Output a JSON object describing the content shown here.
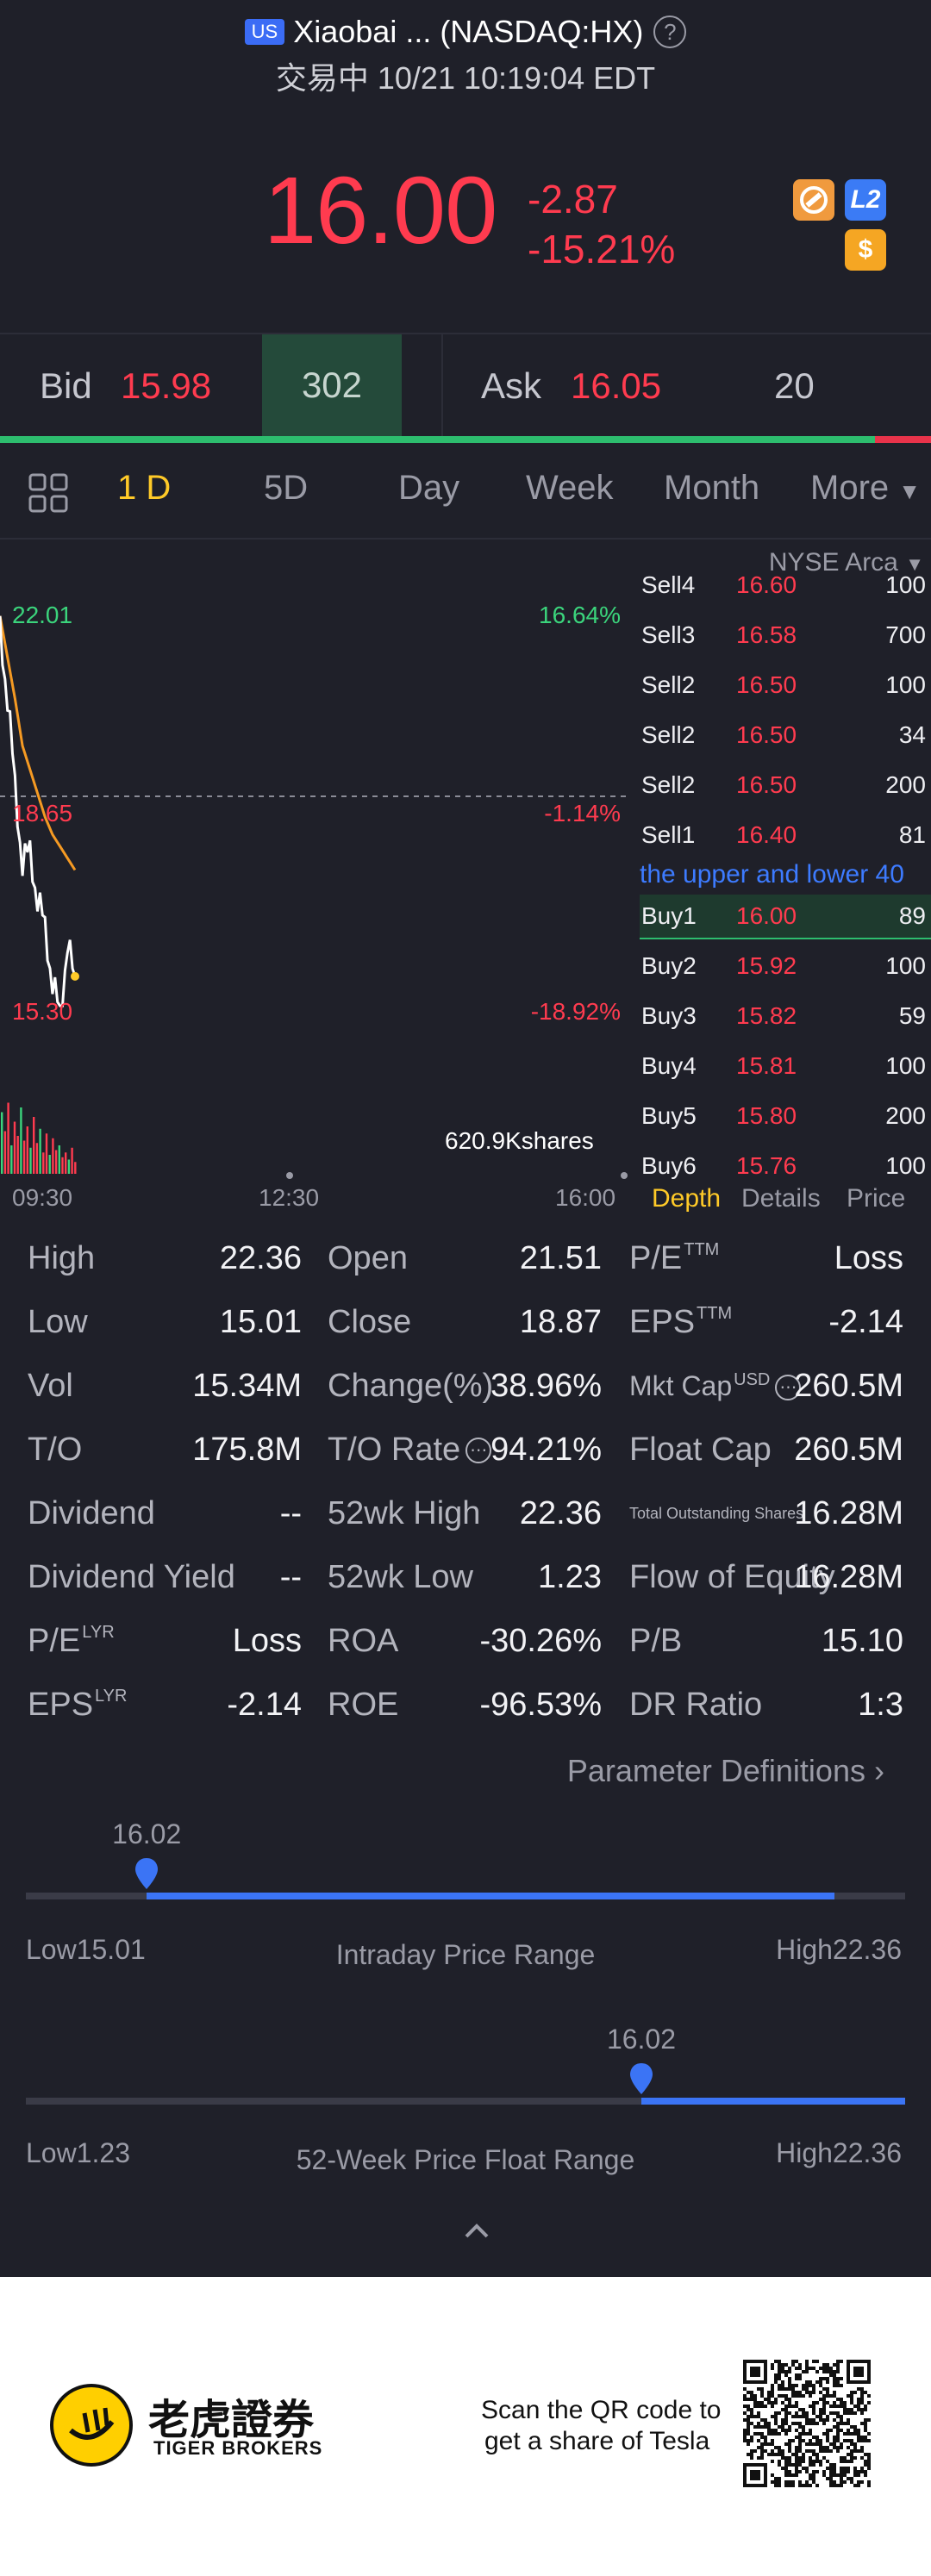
{
  "header": {
    "market_badge": "US",
    "title": "Xiaobai ... (NASDAQ:HX)",
    "status": "交易中 10/21 10:19:04 EDT"
  },
  "quote": {
    "price": "16.00",
    "change": "-2.87",
    "change_pct": "-15.21%",
    "icons": [
      "no-ad-icon",
      "level2-icon",
      "dollar-icon"
    ],
    "l2_label": "L2",
    "dollar_label": "$"
  },
  "bidask": {
    "bid_label": "Bid",
    "bid_price": "15.98",
    "bid_size": "302",
    "ask_label": "Ask",
    "ask_price": "16.05",
    "ask_size": "20",
    "bid_fraction": 0.94
  },
  "tabs": [
    {
      "label": "1 D",
      "active": true
    },
    {
      "label": "5D"
    },
    {
      "label": "Day"
    },
    {
      "label": "Week"
    },
    {
      "label": "Month"
    },
    {
      "label": "More"
    }
  ],
  "chart": {
    "high_label": "22.01",
    "high_pct": "16.64%",
    "mid_label": "18.65",
    "mid_pct": "-1.14%",
    "low_label": "15.30",
    "low_pct": "-18.92%",
    "volume_label": "620.9Kshares",
    "x_ticks": [
      "09:30",
      "12:30",
      "16:00"
    ],
    "colors": {
      "price": "#ffffff",
      "avg": "#f59a23",
      "up": "#3bd47c",
      "down": "#ff3b4f"
    }
  },
  "chart_data": {
    "type": "line",
    "title": "",
    "x": [
      "09:30",
      "09:35",
      "09:40",
      "09:45",
      "09:50",
      "09:55",
      "10:00",
      "10:05",
      "10:10",
      "10:15",
      "10:19"
    ],
    "series": [
      {
        "values": [
          22.0,
          20.4,
          19.3,
          17.6,
          18.2,
          17.0,
          16.9,
          15.6,
          15.4,
          16.3,
          15.9
        ]
      },
      {
        "values": [
          22.0,
          21.3,
          20.6,
          19.8,
          19.4,
          19.0,
          18.6,
          18.3,
          18.1,
          17.9,
          17.7
        ]
      }
    ],
    "ylim": [
      15.3,
      22.01
    ],
    "xlabel": "",
    "ylabel": ""
  },
  "orderbook": {
    "venue": "NYSE Arca",
    "notice": "the upper and lower 40",
    "sells": [
      {
        "side": "Sell4",
        "price": "16.60",
        "size": "100"
      },
      {
        "side": "Sell3",
        "price": "16.58",
        "size": "700"
      },
      {
        "side": "Sell2",
        "price": "16.50",
        "size": "100"
      },
      {
        "side": "Sell2",
        "price": "16.50",
        "size": "34"
      },
      {
        "side": "Sell2",
        "price": "16.50",
        "size": "200"
      },
      {
        "side": "Sell1",
        "price": "16.40",
        "size": "81"
      }
    ],
    "buys": [
      {
        "side": "Buy1",
        "price": "16.00",
        "size": "89"
      },
      {
        "side": "Buy2",
        "price": "15.92",
        "size": "100"
      },
      {
        "side": "Buy3",
        "price": "15.82",
        "size": "59"
      },
      {
        "side": "Buy4",
        "price": "15.81",
        "size": "100"
      },
      {
        "side": "Buy5",
        "price": "15.80",
        "size": "200"
      },
      {
        "side": "Buy6",
        "price": "15.76",
        "size": "100"
      }
    ],
    "tabs": [
      "Depth",
      "Details",
      "Price"
    ]
  },
  "stats": {
    "col1": [
      {
        "label": "High",
        "value": "22.36"
      },
      {
        "label": "Low",
        "value": "15.01"
      },
      {
        "label": "Vol",
        "value": "15.34M"
      },
      {
        "label": "T/O",
        "value": "175.8M"
      },
      {
        "label": "Dividend",
        "value": "--"
      },
      {
        "label": "Dividend Yield",
        "value": "--"
      },
      {
        "label": "P/E",
        "sup": "LYR",
        "value": "Loss"
      },
      {
        "label": "EPS",
        "sup": "LYR",
        "value": "-2.14"
      }
    ],
    "col2": [
      {
        "label": "Open",
        "value": "21.51"
      },
      {
        "label": "Close",
        "value": "18.87"
      },
      {
        "label": "Change(%)",
        "value": "38.96%"
      },
      {
        "label": "T/O Rate",
        "value": "94.21%"
      },
      {
        "label": "52wk High",
        "value": "22.36"
      },
      {
        "label": "52wk Low",
        "value": "1.23"
      },
      {
        "label": "ROA",
        "value": "-30.26%"
      },
      {
        "label": "ROE",
        "value": "-96.53%"
      }
    ],
    "col3": [
      {
        "label": "P/E",
        "sup": "TTM",
        "value": "Loss"
      },
      {
        "label": "EPS",
        "sup": "TTM",
        "value": "-2.14"
      },
      {
        "label": "Mkt Cap",
        "sup": "USD",
        "value": "260.5M"
      },
      {
        "label": "Float Cap",
        "value": "260.5M"
      },
      {
        "label": "Total Outstanding Shares",
        "value": "16.28M"
      },
      {
        "label": "Flow of Equity",
        "value": "16.28M"
      },
      {
        "label": "P/B",
        "value": "15.10"
      },
      {
        "label": "DR Ratio",
        "value": "1:3"
      }
    ],
    "param_def": "Parameter Definitions"
  },
  "intraday_range": {
    "current": "16.02",
    "low_label": "Low15.01",
    "high_label": "High22.36",
    "title": "Intraday Price Range",
    "low": 15.01,
    "high": 22.36,
    "value": 16.02
  },
  "week52_range": {
    "current": "16.02",
    "low_label": "Low1.23",
    "high_label": "High22.36",
    "title": "52-Week Price Float Range",
    "low": 1.23,
    "high": 22.36,
    "value": 16.02
  },
  "footer": {
    "brand_cn": "老虎證券",
    "brand_en": "TIGER BROKERS",
    "scan_line1": "Scan the QR code to",
    "scan_line2": "get a share of Tesla"
  }
}
